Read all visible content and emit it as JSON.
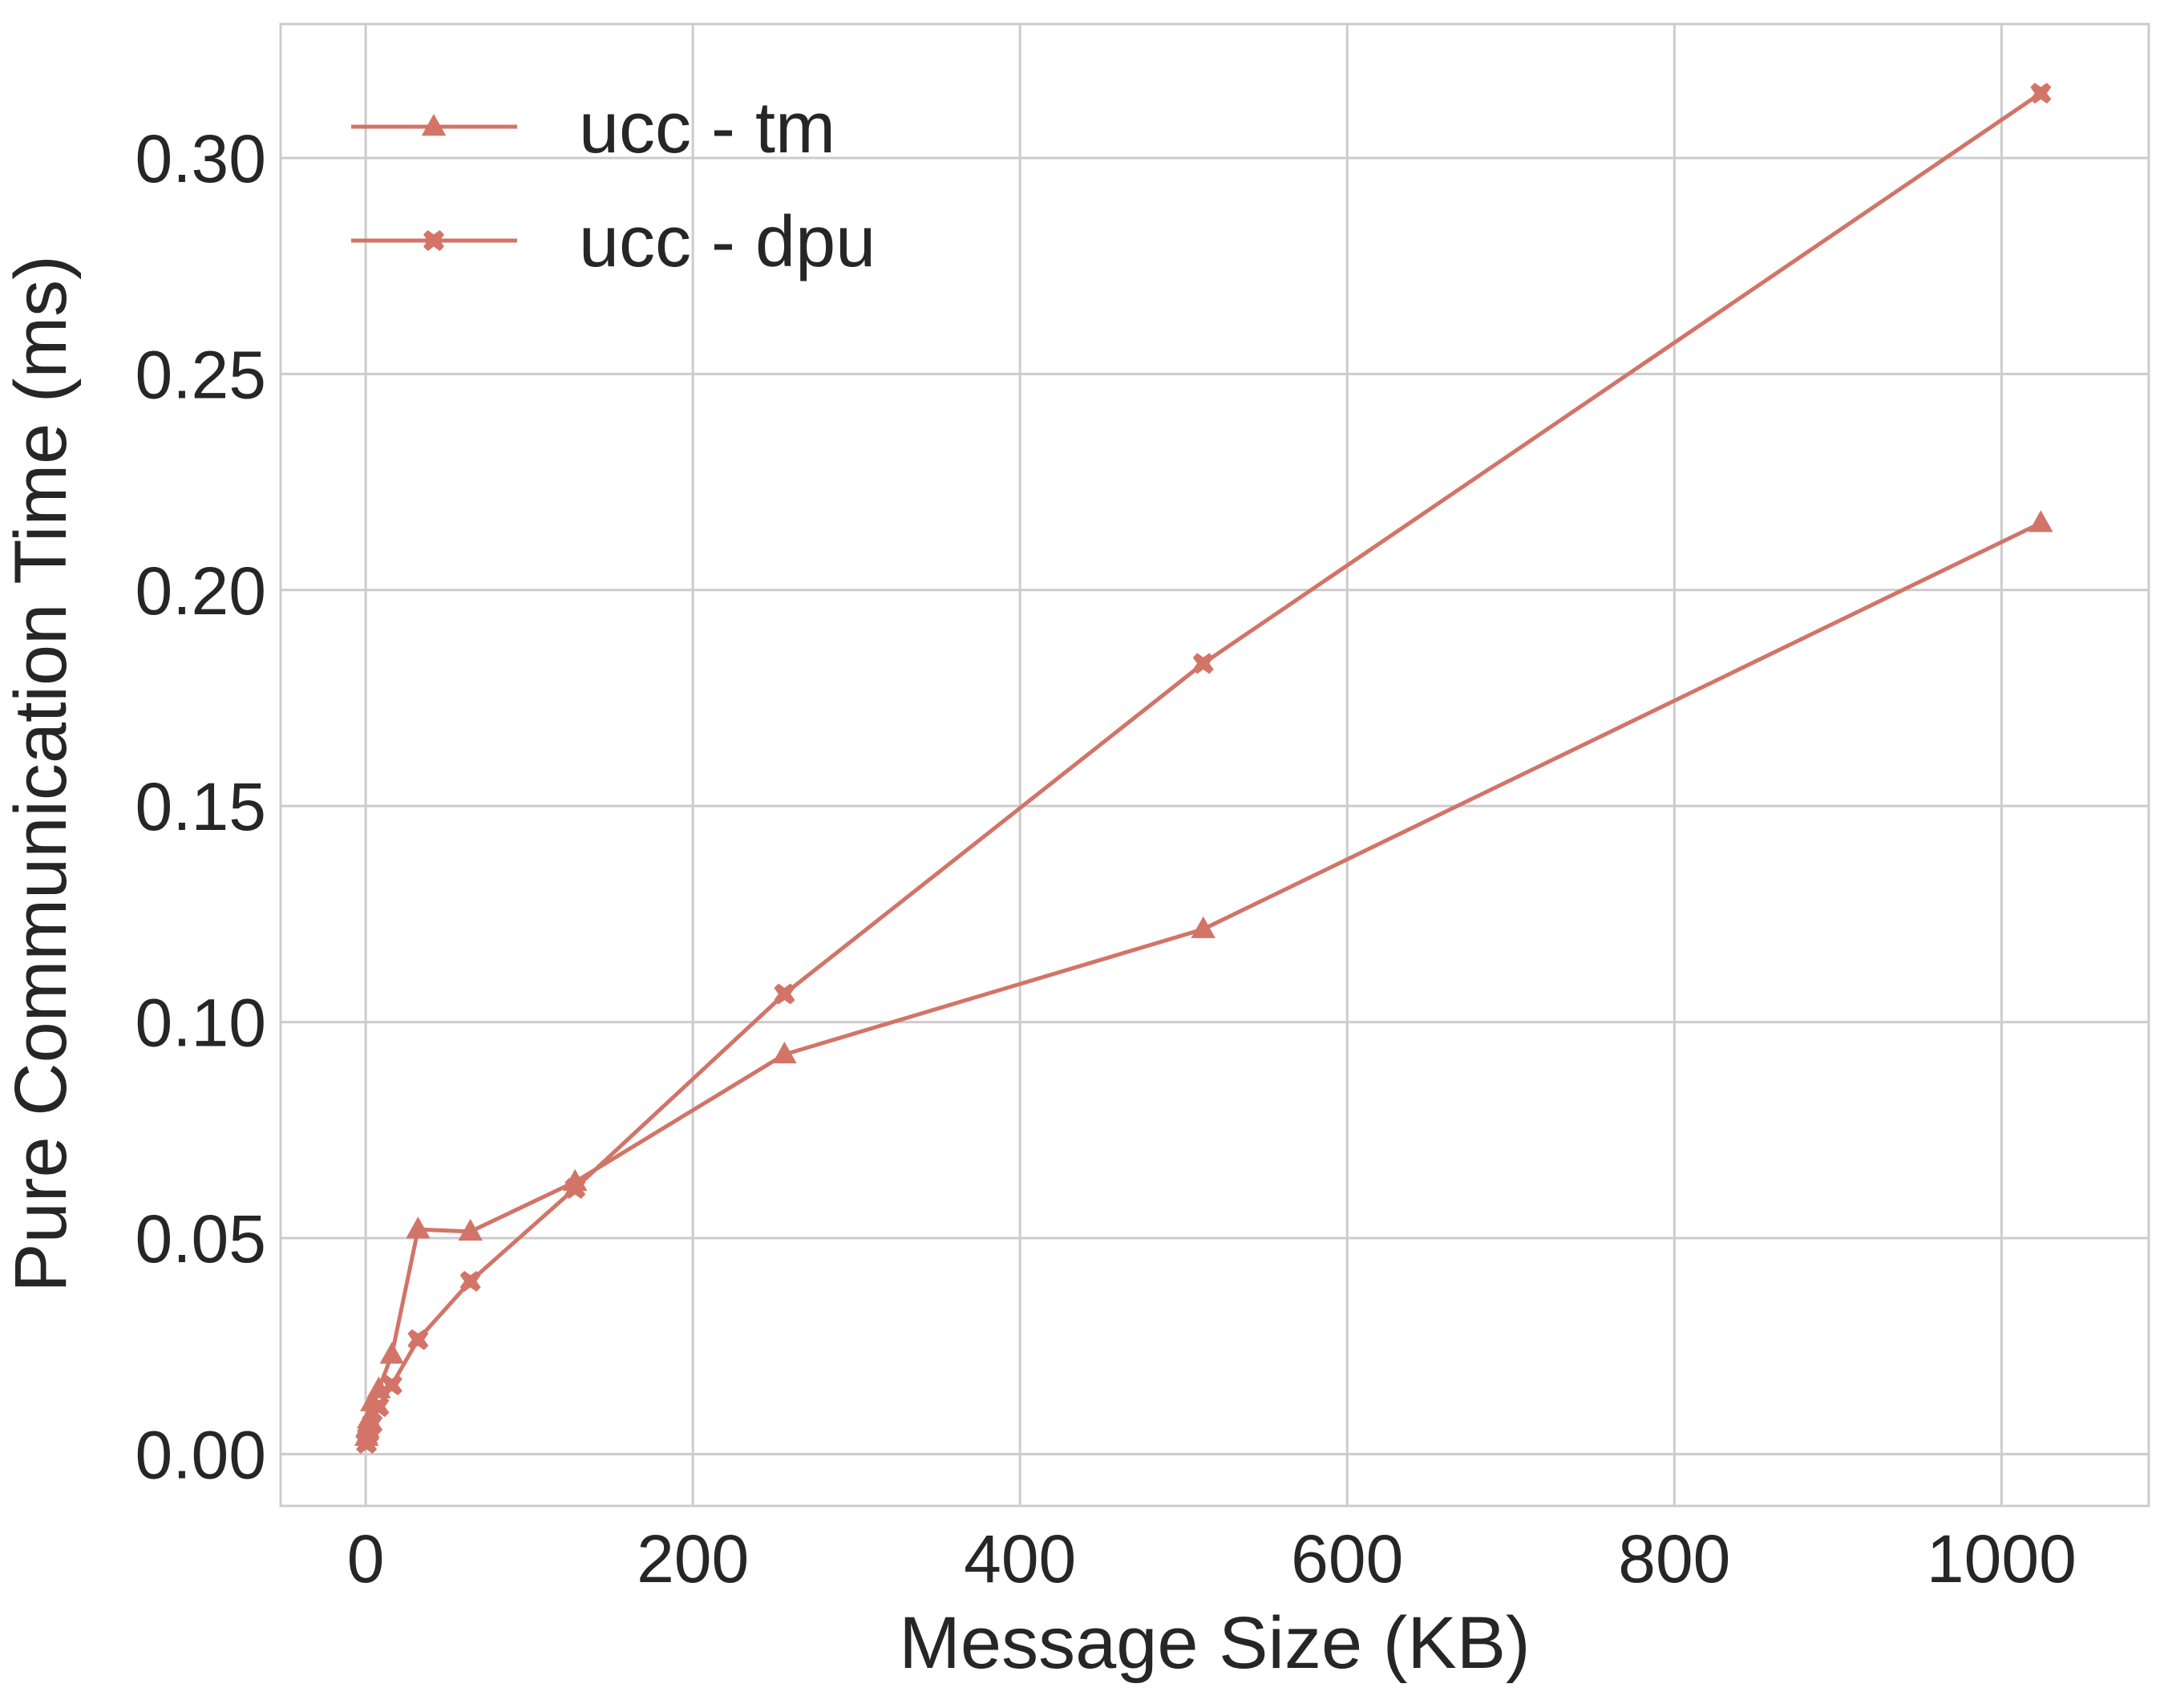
{
  "chart_data": {
    "type": "line",
    "xlabel": "Message Size (KB)",
    "ylabel": "Pure Communication Time (ms)",
    "xlim": [
      -52,
      1090
    ],
    "ylim": [
      -0.012,
      0.331
    ],
    "xticks": [
      0,
      200,
      400,
      600,
      800,
      1000
    ],
    "yticks": [
      0.0,
      0.05,
      0.1,
      0.15,
      0.2,
      0.25,
      0.3
    ],
    "xtick_labels": [
      "0",
      "200",
      "400",
      "600",
      "800",
      "1000"
    ],
    "ytick_labels": [
      "0.00",
      "0.05",
      "0.10",
      "0.15",
      "0.20",
      "0.25",
      "0.30"
    ],
    "grid": true,
    "legend_position": "top-left",
    "series": [
      {
        "name": "ucc - tm",
        "marker": "triangle",
        "color": "#d27467",
        "x": [
          0.5,
          1,
          2,
          4,
          8,
          16,
          32,
          64,
          128,
          256,
          512,
          1024
        ],
        "y": [
          0.004,
          0.006,
          0.008,
          0.012,
          0.015,
          0.023,
          0.052,
          0.0515,
          0.063,
          0.0925,
          0.1215,
          0.2155
        ]
      },
      {
        "name": "ucc - dpu",
        "marker": "x",
        "color": "#d27467",
        "x": [
          0.5,
          1,
          2,
          4,
          8,
          16,
          32,
          64,
          128,
          256,
          512,
          1024
        ],
        "y": [
          0.0025,
          0.004,
          0.005,
          0.007,
          0.011,
          0.016,
          0.0265,
          0.04,
          0.0615,
          0.1065,
          0.183,
          0.315
        ]
      }
    ]
  }
}
